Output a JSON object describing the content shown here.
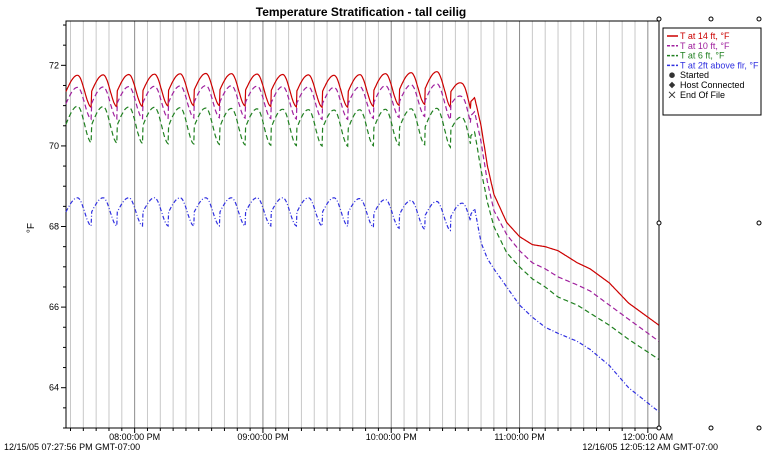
{
  "chart_data": {
    "type": "line",
    "title": "Temperature Stratification - tall ceilig",
    "xlabel": "",
    "ylabel": "°F",
    "ylim": [
      63,
      73.1
    ],
    "y_ticks": [
      64,
      66,
      68,
      70,
      72
    ],
    "x_range_hours": [
      19.465,
      24.087
    ],
    "x_tick_labels": [
      "08:00:00 PM",
      "09:00:00 PM",
      "10:00:00 PM",
      "11:00:00 PM",
      "12:00:00 AM"
    ],
    "x_tick_hours": [
      20,
      21,
      22,
      23,
      24
    ],
    "start_label": "12/15/05 07:27:56 PM GMT-07:00",
    "end_label": "12/16/05 12:05:12 AM GMT-07:00",
    "grid": "vertical",
    "legend_position": "right",
    "series": [
      {
        "name": "T at 14 ft, °F",
        "color": "#cc0000",
        "dash": "solid",
        "baseline": 71.45,
        "peak_amp": 0.4,
        "points": [
          [
            19.465,
            71.45
          ],
          [
            20.6,
            71.5
          ],
          [
            21.6,
            71.45
          ],
          [
            22.42,
            71.55
          ],
          [
            22.62,
            71.1
          ],
          [
            22.65,
            71.2
          ],
          [
            22.7,
            70.5
          ],
          [
            22.75,
            69.5
          ],
          [
            22.8,
            68.8
          ],
          [
            22.9,
            68.1
          ],
          [
            23.0,
            67.75
          ],
          [
            23.1,
            67.55
          ],
          [
            23.2,
            67.5
          ],
          [
            23.3,
            67.4
          ],
          [
            23.45,
            67.1
          ],
          [
            23.55,
            66.95
          ],
          [
            23.7,
            66.6
          ],
          [
            23.85,
            66.1
          ],
          [
            24.087,
            65.55
          ]
        ]
      },
      {
        "name": "T at 10 ft, °F",
        "color": "#a0209e",
        "dash": "dashed",
        "baseline": 71.15,
        "peak_amp": 0.4,
        "points": [
          [
            19.465,
            71.15
          ],
          [
            20.6,
            71.2
          ],
          [
            21.6,
            71.15
          ],
          [
            22.42,
            71.25
          ],
          [
            22.62,
            70.75
          ],
          [
            22.65,
            70.85
          ],
          [
            22.7,
            70.1
          ],
          [
            22.75,
            69.1
          ],
          [
            22.8,
            68.4
          ],
          [
            22.9,
            67.8
          ],
          [
            23.0,
            67.4
          ],
          [
            23.1,
            67.1
          ],
          [
            23.2,
            66.95
          ],
          [
            23.3,
            66.75
          ],
          [
            23.45,
            66.55
          ],
          [
            23.55,
            66.4
          ],
          [
            23.7,
            66.05
          ],
          [
            23.85,
            65.7
          ],
          [
            24.087,
            65.15
          ]
        ]
      },
      {
        "name": "T at 6 ft, °F",
        "color": "#208020",
        "dash": "dashed",
        "baseline": 70.65,
        "peak_amp": 0.45,
        "points": [
          [
            19.465,
            70.65
          ],
          [
            20.6,
            70.6
          ],
          [
            21.6,
            70.55
          ],
          [
            22.42,
            70.6
          ],
          [
            22.62,
            70.25
          ],
          [
            22.65,
            70.35
          ],
          [
            22.7,
            69.4
          ],
          [
            22.75,
            68.6
          ],
          [
            22.8,
            68.0
          ],
          [
            22.9,
            67.35
          ],
          [
            23.0,
            67.0
          ],
          [
            23.1,
            66.7
          ],
          [
            23.2,
            66.5
          ],
          [
            23.3,
            66.25
          ],
          [
            23.45,
            66.05
          ],
          [
            23.55,
            65.85
          ],
          [
            23.7,
            65.55
          ],
          [
            23.85,
            65.2
          ],
          [
            24.087,
            64.7
          ]
        ]
      },
      {
        "name": "T at 2ft above flr, °F",
        "color": "#3030e0",
        "dash": "dashdot",
        "baseline": 68.45,
        "peak_amp": 0.35,
        "points": [
          [
            19.465,
            68.45
          ],
          [
            20.6,
            68.45
          ],
          [
            21.6,
            68.45
          ],
          [
            22.42,
            68.35
          ],
          [
            22.62,
            68.3
          ],
          [
            22.65,
            68.45
          ],
          [
            22.7,
            67.6
          ],
          [
            22.75,
            67.2
          ],
          [
            22.8,
            66.95
          ],
          [
            22.9,
            66.5
          ],
          [
            23.0,
            66.05
          ],
          [
            23.1,
            65.75
          ],
          [
            23.2,
            65.5
          ],
          [
            23.3,
            65.35
          ],
          [
            23.45,
            65.15
          ],
          [
            23.55,
            64.95
          ],
          [
            23.7,
            64.55
          ],
          [
            23.85,
            64.0
          ],
          [
            24.087,
            63.4
          ]
        ]
      }
    ],
    "legend_symbols": [
      {
        "name": "Started",
        "symbol": "filled-circle"
      },
      {
        "name": "Host Connected",
        "symbol": "filled-diamond"
      },
      {
        "name": "End Of File",
        "symbol": "x"
      }
    ]
  }
}
